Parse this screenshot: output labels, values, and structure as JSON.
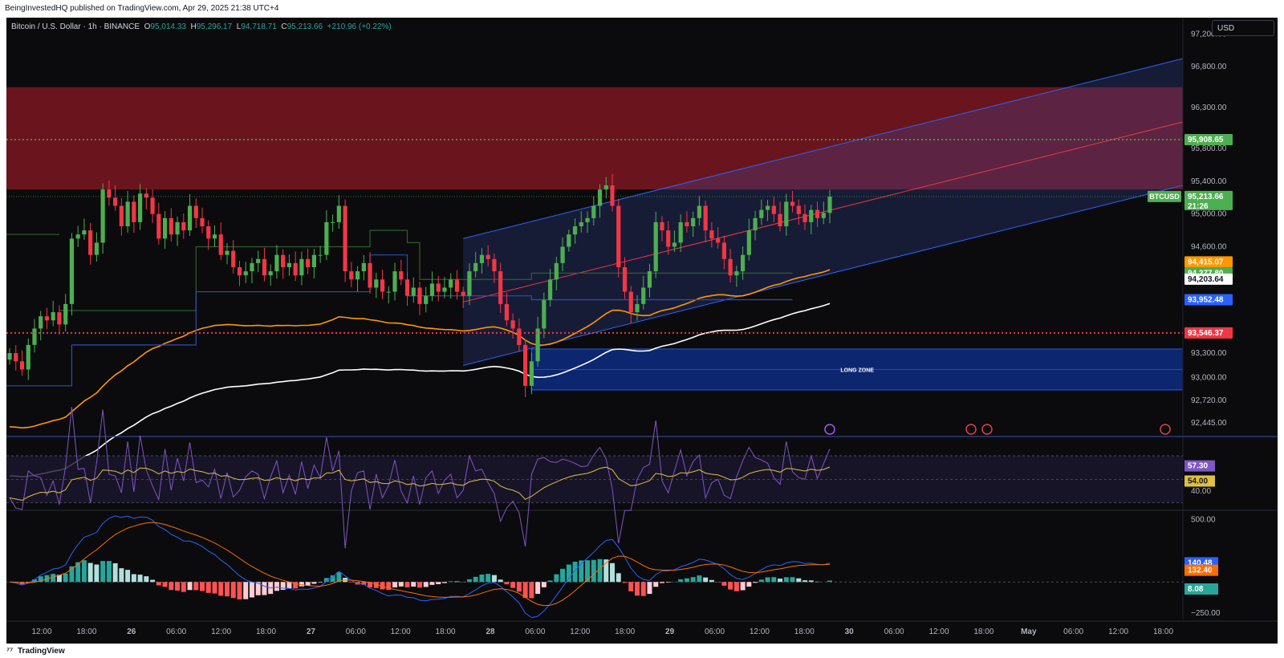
{
  "header": {
    "published": "BeingInvestedHQ published on TradingView.com, Apr 29, 2025 21:38 UTC+4"
  },
  "legend": {
    "symbol": "Bitcoin / U.S. Dollar · 1h · BINANCE",
    "o_label": "O",
    "o": "95,014.33",
    "h_label": "H",
    "h": "95,296.17",
    "l_label": "L",
    "l": "94,718.71",
    "c_label": "C",
    "c": "95,213.66",
    "change": "+210.96 (+0.22%)"
  },
  "currency_button": "USD",
  "footer": {
    "brand": "TradingView"
  },
  "colors": {
    "background": "#0b0b0d",
    "bull": "#4caf50",
    "bear": "#f23645",
    "ema_orange": "#ff9800",
    "ema_white": "#ffffff",
    "channel": "#2962ff",
    "rsi": "#7e57c2",
    "rsi_ma": "#e0c040",
    "macd": "#2962ff",
    "signal": "#ff6d00"
  },
  "chart_data": [
    {
      "type": "candlestick",
      "symbol": "BTCUSD",
      "timeframe": "1h",
      "x_ticks": [
        "12:00",
        "18:00",
        "26",
        "06:00",
        "12:00",
        "18:00",
        "27",
        "06:00",
        "12:00",
        "18:00",
        "28",
        "06:00",
        "12:00",
        "18:00",
        "29",
        "06:00",
        "12:00",
        "18:00",
        "30",
        "06:00",
        "12:00",
        "18:00",
        "May",
        "06:00",
        "12:00",
        "18:00"
      ],
      "y_ticks": [
        "97,200.00",
        "96,800.00",
        "96,300.00",
        "95,800.00",
        "95,400.00",
        "95,000.00",
        "94,600.00",
        "93,300.00",
        "93,000.00",
        "92,720.00",
        "92,445.00"
      ],
      "ylim": [
        92300,
        97400
      ],
      "close_path": [
        93300,
        93200,
        93100,
        93400,
        93600,
        93750,
        93700,
        93800,
        93650,
        93900,
        94700,
        94750,
        94800,
        94500,
        94650,
        95300,
        95200,
        95100,
        94850,
        95150,
        94900,
        95250,
        95200,
        95000,
        94700,
        94950,
        94750,
        94900,
        94800,
        95100,
        94950,
        94850,
        94700,
        94750,
        94500,
        94550,
        94350,
        94250,
        94300,
        94400,
        94450,
        94250,
        94300,
        94500,
        94350,
        94400,
        94250,
        94450,
        94350,
        94500,
        94500,
        94900,
        94900,
        95100,
        94300,
        94200,
        94300,
        94400,
        94100,
        94200,
        94050,
        94050,
        94300,
        94200,
        94000,
        94100,
        93900,
        94000,
        94150,
        94050,
        94100,
        94200,
        94050,
        94000,
        94300,
        94400,
        94500,
        94450,
        94300,
        93900,
        93700,
        93600,
        93400,
        92900,
        93200,
        93600,
        93950,
        94200,
        94400,
        94600,
        94750,
        94850,
        94900,
        94950,
        95100,
        95300,
        95350,
        95100,
        94350,
        94050,
        93800,
        93900,
        94100,
        94300,
        94900,
        94800,
        94600,
        94650,
        94900,
        94850,
        94950,
        95100,
        94800,
        94700,
        94650,
        94450,
        94250,
        94300,
        94500,
        94800,
        94950,
        95050,
        95100,
        95000,
        94850,
        95150,
        95100,
        95000,
        94900,
        95050,
        94950,
        95014,
        95213
      ],
      "horizontal_levels": [
        {
          "label": "95,908.65",
          "value": 95908.65,
          "color": "#4caf50",
          "style": "dotted"
        },
        {
          "label": "93,546.37",
          "value": 93546.37,
          "color": "#f23645",
          "style": "dotted"
        }
      ],
      "zones": [
        {
          "name": "supply",
          "from": 95300,
          "to": 96550,
          "color": "#8b1a24"
        },
        {
          "name": "LONG ZONE",
          "label": "LONG ZONE",
          "from": 92850,
          "to": 93350,
          "color": "#0d2a7a"
        }
      ],
      "price_labels": [
        {
          "text": "95,908.65",
          "color": "#4caf50"
        },
        {
          "text": "95,213.66",
          "sub": "21:26",
          "color": "#4caf50",
          "tag": "BTCUSD"
        },
        {
          "text": "94,415.07",
          "color": "#ff9800"
        },
        {
          "text": "94,277.80",
          "color": "#4caf50"
        },
        {
          "text": "94,203.64",
          "color": "#ffffff"
        },
        {
          "text": "93,952.48",
          "color": "#2962ff"
        },
        {
          "text": "93,546.37",
          "color": "#f23645"
        }
      ],
      "indicators": [
        "EMA (orange)",
        "EMA (white)",
        "Regression channel",
        "Trailing stops"
      ]
    },
    {
      "type": "line",
      "name": "RSI",
      "ylim": [
        25,
        85
      ],
      "y_ticks": [
        "40.00"
      ],
      "current": [
        {
          "text": "57.30",
          "color": "#7e57c2"
        },
        {
          "text": "54.00",
          "color": "#e0c040"
        }
      ]
    },
    {
      "type": "line",
      "name": "MACD",
      "ylim": [
        -300,
        560
      ],
      "y_ticks": [
        "500.00",
        "−250.00"
      ],
      "current": [
        {
          "text": "140.48",
          "color": "#2962ff"
        },
        {
          "text": "132.40",
          "color": "#ff6d00"
        },
        {
          "text": "8.08",
          "color": "#26a69a"
        }
      ]
    }
  ]
}
